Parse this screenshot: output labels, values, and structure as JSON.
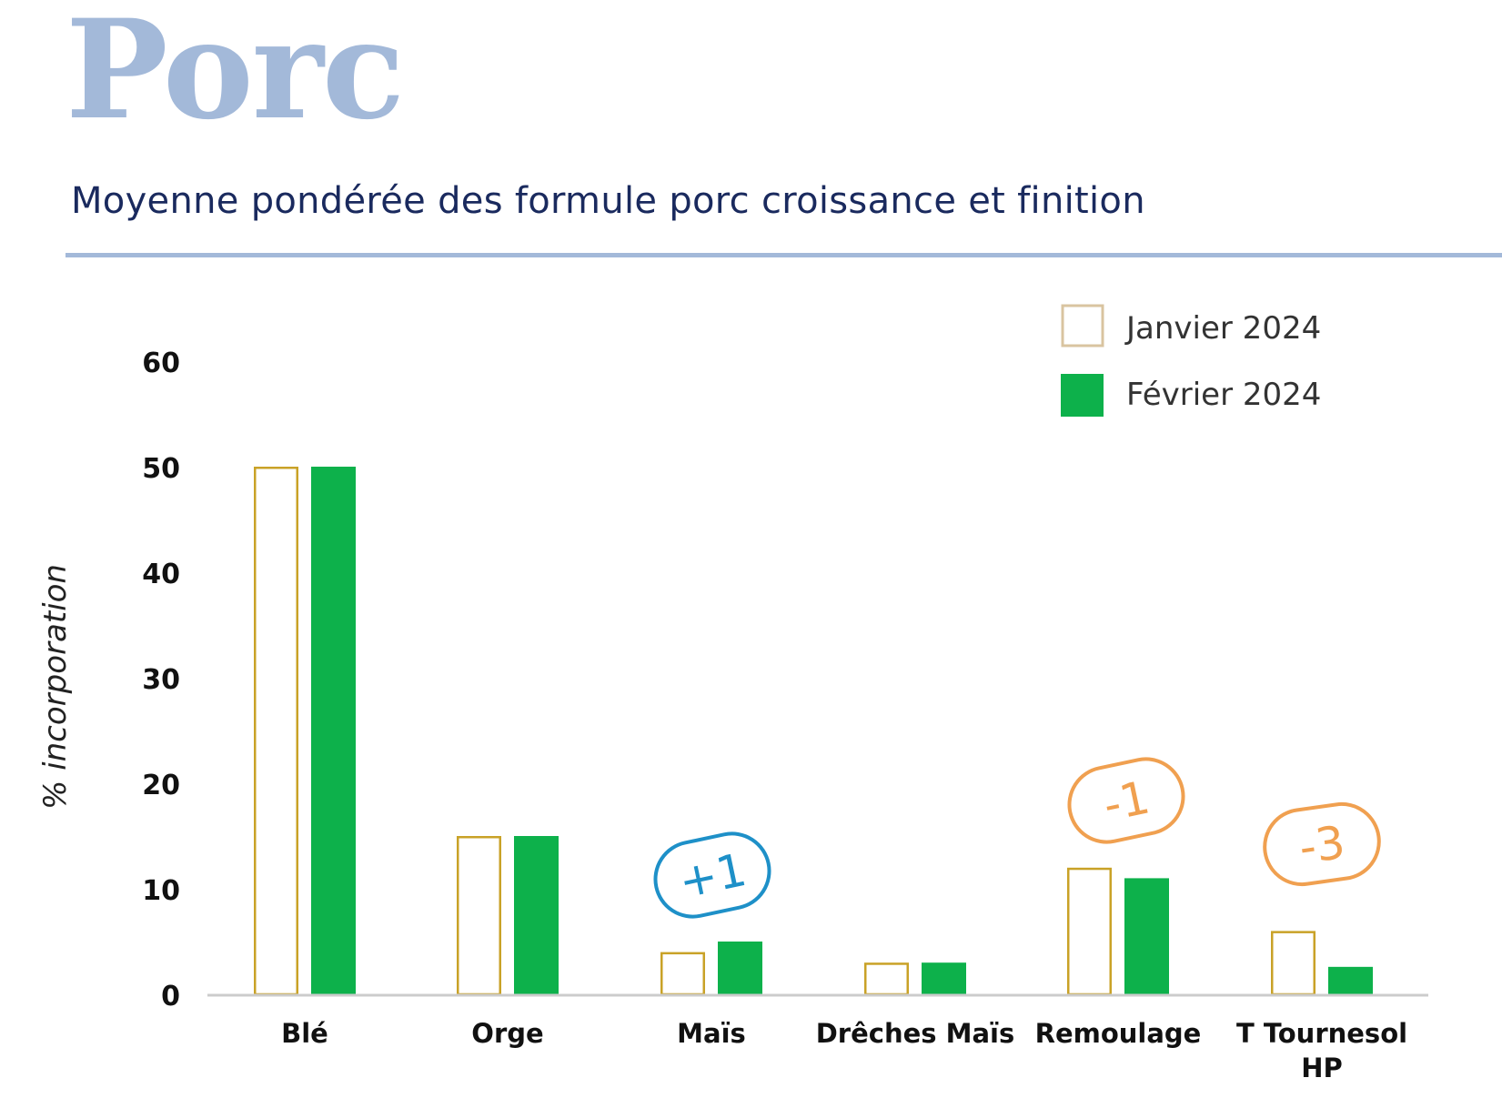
{
  "header": {
    "title": "Porc",
    "subtitle": "Moyenne pondérée des formule porc croissance et finition"
  },
  "colors": {
    "title": "#a3b9d9",
    "subtitle": "#1a2a5e",
    "rule": "#a3b9d9",
    "janvier_outline": "#c9a227",
    "fevrier_fill": "#0db14b",
    "legend_outline": "#d9c4a0",
    "badge_positive": "#1e90c8",
    "badge_negative": "#f0a050",
    "axis": "#cccccc",
    "text": "#111111"
  },
  "chart_data": {
    "type": "bar",
    "title": "",
    "xlabel": "",
    "ylabel": "% incorporation",
    "ylim": [
      0,
      60
    ],
    "yticks": [
      0,
      10,
      20,
      30,
      40,
      50,
      60
    ],
    "grid": false,
    "legend_position": "top-right",
    "categories": [
      "Blé",
      "Orge",
      "Maïs",
      "Drêches Maïs",
      "Remoulage",
      "T Tournesol HP"
    ],
    "series": [
      {
        "name": "Janvier 2024",
        "style": "outline",
        "values": [
          50,
          15,
          4,
          3,
          12,
          6
        ]
      },
      {
        "name": "Février 2024",
        "style": "filled",
        "values": [
          50,
          15,
          5,
          3,
          11,
          2.6
        ]
      }
    ],
    "annotations": [
      {
        "category": "Maïs",
        "text": "+1",
        "kind": "positive"
      },
      {
        "category": "Remoulage",
        "text": "-1",
        "kind": "negative"
      },
      {
        "category": "T Tournesol HP",
        "text": "-3",
        "kind": "negative"
      }
    ]
  }
}
